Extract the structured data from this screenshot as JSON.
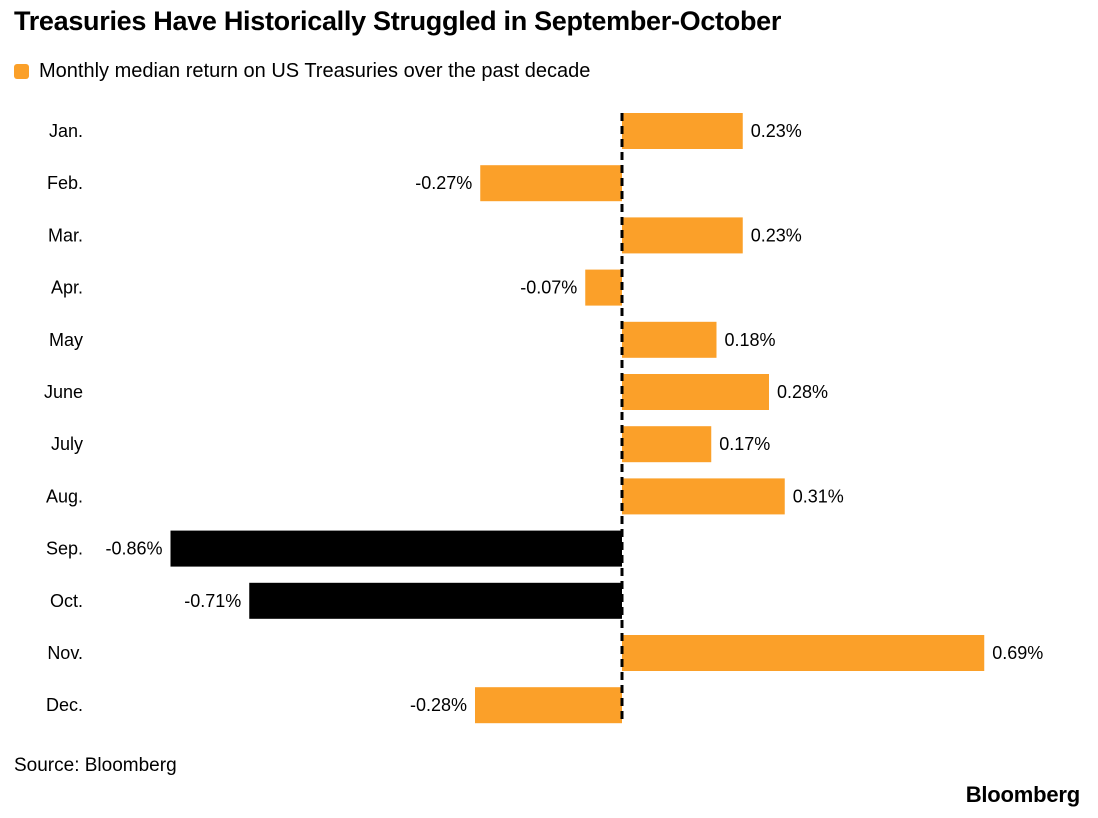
{
  "title": "Treasuries Have Historically Struggled in September-October",
  "legend": {
    "label": "Monthly median return on US Treasuries over the past decade",
    "color": "#FBA029"
  },
  "source": "Source: Bloomberg",
  "brand": "Bloomberg",
  "colors": {
    "positive": "#FBA029",
    "highlight": "#000000",
    "zero_line": "#000000"
  },
  "chart_data": {
    "type": "bar",
    "orientation": "horizontal",
    "title": "Treasuries Have Historically Struggled in September-October",
    "categories": [
      "Jan.",
      "Feb.",
      "Mar.",
      "Apr.",
      "May",
      "June",
      "July",
      "Aug.",
      "Sep.",
      "Oct.",
      "Nov.",
      "Dec."
    ],
    "series": [
      {
        "name": "Monthly median return on US Treasuries over the past decade",
        "values": [
          0.23,
          -0.27,
          0.23,
          -0.07,
          0.18,
          0.28,
          0.17,
          0.31,
          -0.86,
          -0.71,
          0.69,
          -0.28
        ]
      }
    ],
    "data_labels": [
      "0.23%",
      "-0.27%",
      "0.23%",
      "-0.07%",
      "0.18%",
      "0.28%",
      "0.17%",
      "0.31%",
      "-0.86%",
      "-0.71%",
      "0.69%",
      "-0.28%"
    ],
    "highlighted_categories": [
      "Sep.",
      "Oct."
    ],
    "unit": "%",
    "zero_line": "dashed",
    "grid": false,
    "legend_position": "top-left"
  }
}
